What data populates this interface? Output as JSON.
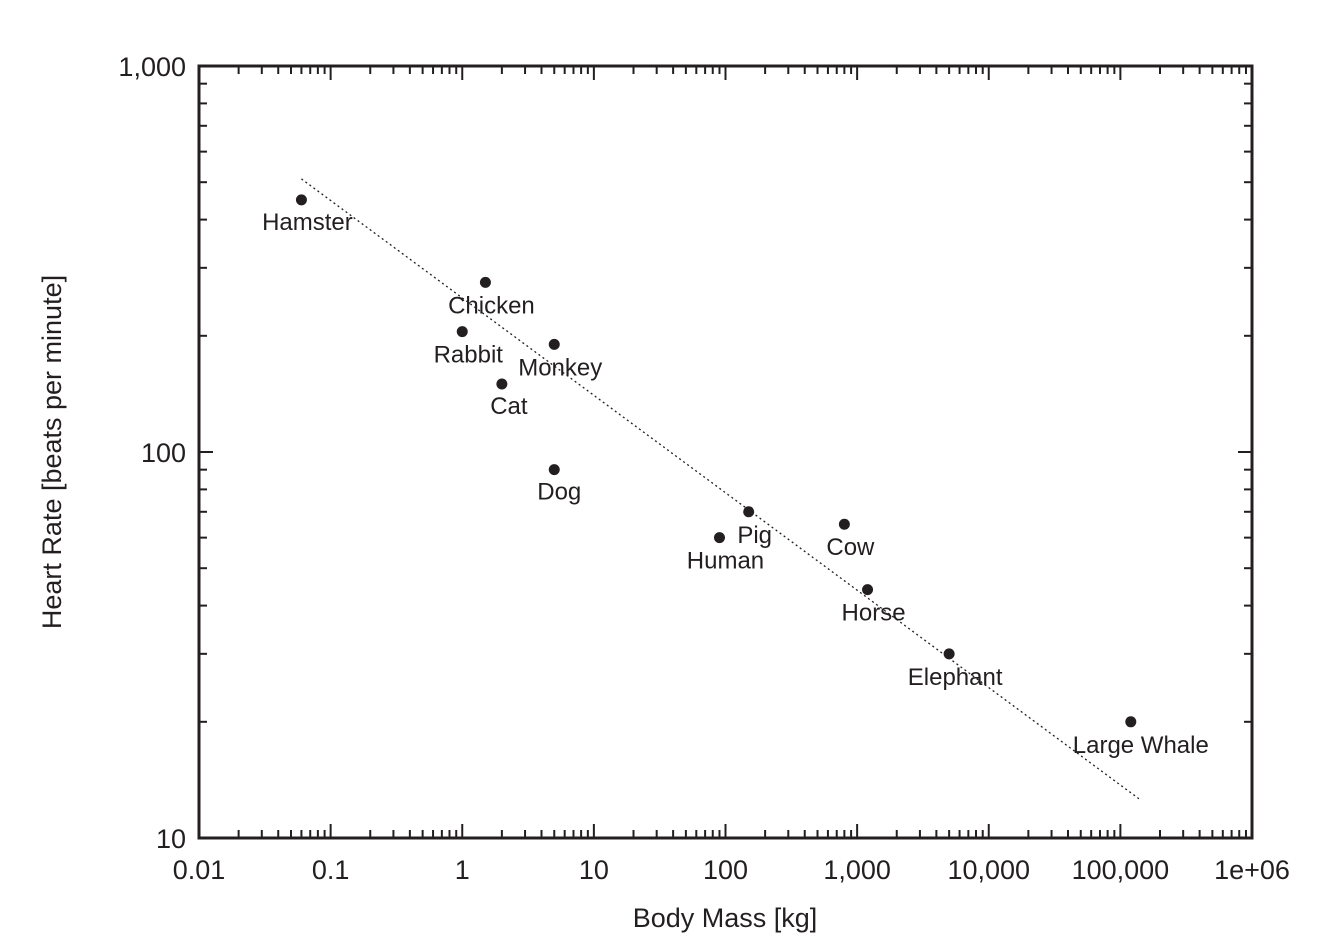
{
  "chart_data": {
    "type": "scatter",
    "title": "",
    "xlabel": "Body Mass [kg]",
    "ylabel": "Heart Rate [beats per minute]",
    "x_scale": "log",
    "y_scale": "log",
    "xlim": [
      0.01,
      1000000
    ],
    "ylim": [
      10,
      1000
    ],
    "x_ticks": [
      0.01,
      0.1,
      1,
      10,
      100,
      1000,
      10000,
      100000,
      1000000
    ],
    "x_tick_labels": [
      "0.01",
      "0.1",
      "1",
      "10",
      "100",
      "1,000",
      "10,000",
      "100,000",
      "1e+06"
    ],
    "y_ticks": [
      10,
      100,
      1000
    ],
    "y_tick_labels": [
      "10",
      "100",
      "1,000"
    ],
    "grid": false,
    "point_color": "#231f20",
    "points": [
      {
        "label": "Hamster",
        "x": 0.06,
        "y": 450
      },
      {
        "label": "Chicken",
        "x": 1.5,
        "y": 275
      },
      {
        "label": "Rabbit",
        "x": 1.0,
        "y": 205
      },
      {
        "label": "Monkey",
        "x": 5.0,
        "y": 190
      },
      {
        "label": "Cat",
        "x": 2.0,
        "y": 150
      },
      {
        "label": "Dog",
        "x": 5.0,
        "y": 90
      },
      {
        "label": "Pig",
        "x": 150,
        "y": 70
      },
      {
        "label": "Human",
        "x": 90,
        "y": 60
      },
      {
        "label": "Cow",
        "x": 800,
        "y": 65
      },
      {
        "label": "Horse",
        "x": 1200,
        "y": 44
      },
      {
        "label": "Elephant",
        "x": 5000,
        "y": 30
      },
      {
        "label": "Large Whale",
        "x": 120000,
        "y": 20
      }
    ],
    "trendline": {
      "style": "dotted",
      "x": [
        0.06,
        140000
      ],
      "y": [
        510,
        12.6
      ]
    }
  }
}
